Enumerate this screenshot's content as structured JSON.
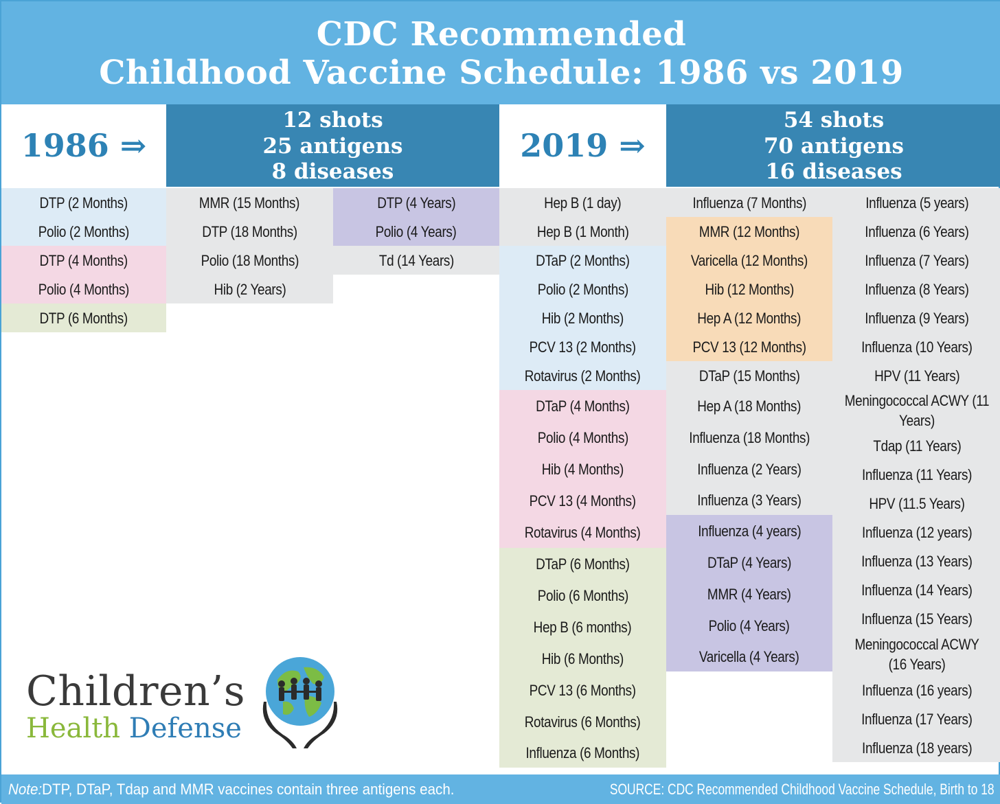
{
  "title": {
    "line1": "CDC Recommended",
    "line2": "Childhood Vaccine Schedule: 1986 vs 2019"
  },
  "schedule_1986": {
    "year_label": "1986 ⇒",
    "stats": [
      "12 shots",
      "25 antigens",
      "8 diseases"
    ],
    "columns": [
      [
        {
          "text": "DTP (2 Months)",
          "color": "blue"
        },
        {
          "text": "Polio (2 Months)",
          "color": "blue"
        },
        {
          "text": "DTP (4 Months)",
          "color": "pink"
        },
        {
          "text": "Polio (4 Months)",
          "color": "pink"
        },
        {
          "text": "DTP (6 Months)",
          "color": "green"
        }
      ],
      [
        {
          "text": "MMR (15 Months)",
          "color": "gray"
        },
        {
          "text": "DTP (18 Months)",
          "color": "gray"
        },
        {
          "text": "Polio (18 Months)",
          "color": "gray"
        },
        {
          "text": "Hib (2 Years)",
          "color": "gray"
        }
      ],
      [
        {
          "text": "DTP (4 Years)",
          "color": "purple"
        },
        {
          "text": "Polio (4 Years)",
          "color": "purple"
        },
        {
          "text": "Td (14 Years)",
          "color": "gray"
        }
      ]
    ]
  },
  "schedule_2019": {
    "year_label": "2019 ⇒",
    "stats": [
      "54 shots",
      "70 antigens",
      "16 diseases"
    ],
    "columns": [
      [
        {
          "text": "Hep B (1 day)",
          "color": "gray"
        },
        {
          "text": "Hep B (1 Month)",
          "color": "gray"
        },
        {
          "text": "DTaP (2 Months)",
          "color": "blue"
        },
        {
          "text": "Polio (2 Months)",
          "color": "blue"
        },
        {
          "text": "Hib (2 Months)",
          "color": "blue"
        },
        {
          "text": "PCV 13 (2 Months)",
          "color": "blue"
        },
        {
          "text": "Rotavirus (2 Months)",
          "color": "blue"
        },
        {
          "text": "DTaP (4 Months)",
          "color": "pink"
        },
        {
          "text": "Polio (4 Months)",
          "color": "pink"
        },
        {
          "text": "Hib (4 Months)",
          "color": "pink"
        },
        {
          "text": "PCV 13 (4 Months)",
          "color": "pink"
        },
        {
          "text": "Rotavirus (4 Months)",
          "color": "pink"
        },
        {
          "text": "DTaP (6 Months)",
          "color": "green"
        },
        {
          "text": "Polio (6 Months)",
          "color": "green"
        },
        {
          "text": "Hep B (6 months)",
          "color": "green"
        },
        {
          "text": "Hib (6 Months)",
          "color": "green"
        },
        {
          "text": "PCV 13 (6 Months)",
          "color": "green"
        },
        {
          "text": "Rotavirus (6 Months)",
          "color": "green"
        },
        {
          "text": "Influenza (6 Months)",
          "color": "green"
        }
      ],
      [
        {
          "text": "Influenza (7 Months)",
          "color": "gray"
        },
        {
          "text": "MMR (12 Months)",
          "color": "orange"
        },
        {
          "text": "Varicella (12 Months)",
          "color": "orange"
        },
        {
          "text": "Hib (12 Months)",
          "color": "orange"
        },
        {
          "text": "Hep A (12 Months)",
          "color": "orange"
        },
        {
          "text": "PCV 13 (12 Months)",
          "color": "orange"
        },
        {
          "text": "DTaP (15 Months)",
          "color": "gray"
        },
        {
          "text": "Hep A (18 Months)",
          "color": "gray"
        },
        {
          "text": "Influenza (18 Months)",
          "color": "gray"
        },
        {
          "text": "Influenza (2 Years)",
          "color": "gray"
        },
        {
          "text": "Influenza (3 Years)",
          "color": "gray"
        },
        {
          "text": "Influenza (4 years)",
          "color": "purple"
        },
        {
          "text": "DTaP (4 Years)",
          "color": "purple"
        },
        {
          "text": "MMR (4 Years)",
          "color": "purple"
        },
        {
          "text": "Polio (4 Years)",
          "color": "purple"
        },
        {
          "text": "Varicella (4 Years)",
          "color": "purple"
        }
      ],
      [
        {
          "text": "Influenza (5 years)",
          "color": "gray"
        },
        {
          "text": "Influenza (6 Years)",
          "color": "gray"
        },
        {
          "text": "Influenza (7 Years)",
          "color": "gray"
        },
        {
          "text": "Influenza (8 Years)",
          "color": "gray"
        },
        {
          "text": "Influenza (9 Years)",
          "color": "gray"
        },
        {
          "text": "Influenza (10 Years)",
          "color": "gray"
        },
        {
          "text": "HPV (11 Years)",
          "color": "gray"
        },
        {
          "text": "Meningococcal ACWY (11 Years)",
          "color": "gray"
        },
        {
          "text": "Tdap (11 Years)",
          "color": "gray"
        },
        {
          "text": "Influenza (11 Years)",
          "color": "gray"
        },
        {
          "text": "HPV (11.5 Years)",
          "color": "gray"
        },
        {
          "text": "Influenza (12 years)",
          "color": "gray"
        },
        {
          "text": "Influenza (13 Years)",
          "color": "gray"
        },
        {
          "text": "Influenza (14 Years)",
          "color": "gray"
        },
        {
          "text": "Influenza (15 Years)",
          "color": "gray"
        },
        {
          "text": "Meningococcal ACWY (16 Years)",
          "color": "gray"
        },
        {
          "text": "Influenza (16 years)",
          "color": "gray"
        },
        {
          "text": "Influenza (17 Years)",
          "color": "gray"
        },
        {
          "text": "Influenza (18 years)",
          "color": "gray"
        }
      ]
    ]
  },
  "logo": {
    "line1": "Children’s",
    "health": "Health",
    "defense": "Defense"
  },
  "footer": {
    "note_label": "Note:",
    "note_text": " DTP, DTaP, Tdap and MMR vaccines contain three antigens each.",
    "source": "SOURCE: CDC Recommended Childhood Vaccine Schedule, Birth to 18"
  },
  "colors": {
    "title_band": "#62b3e2",
    "stats_band": "#3886b3",
    "year_text": "#2d82b5",
    "blue": "#ddebf6",
    "pink": "#f4d8e4",
    "green": "#e4ead5",
    "gray": "#e6e7e8",
    "purple": "#c8c5e3",
    "orange": "#f8dbb8"
  }
}
